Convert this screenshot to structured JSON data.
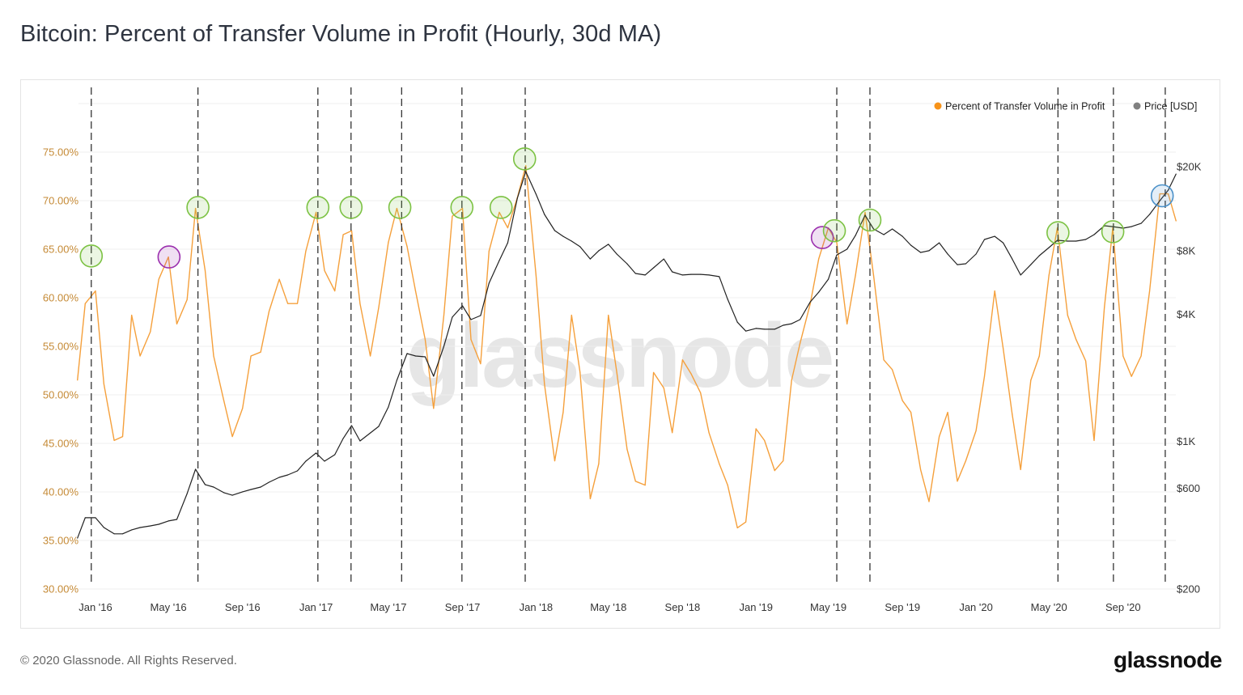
{
  "title": "Bitcoin: Percent of Transfer Volume in Profit (Hourly, 30d MA)",
  "footer": "© 2020 Glassnode. All Rights Reserved.",
  "logo": "glassnode",
  "watermark": "glassnode",
  "chart_data": {
    "type": "line",
    "title": "Bitcoin: Percent of Transfer Volume in Profit (Hourly, 30d MA)",
    "ylim": [
      30,
      80
    ],
    "y2lim": [
      200,
      40000
    ],
    "y2scale": "log",
    "grid": true,
    "legend_position": "top-right",
    "legend": [
      {
        "label": "Percent of Transfer Volume in Profit",
        "color": "#f7931a"
      },
      {
        "label": "Price [USD]",
        "color": "#808080"
      }
    ],
    "x_ticks": [
      {
        "date": "2016-01-01",
        "label": "Jan '16"
      },
      {
        "date": "2016-05-01",
        "label": "May '16"
      },
      {
        "date": "2016-09-01",
        "label": "Sep '16"
      },
      {
        "date": "2017-01-01",
        "label": "Jan '17"
      },
      {
        "date": "2017-05-01",
        "label": "May '17"
      },
      {
        "date": "2017-09-01",
        "label": "Sep '17"
      },
      {
        "date": "2018-01-01",
        "label": "Jan '18"
      },
      {
        "date": "2018-05-01",
        "label": "May '18"
      },
      {
        "date": "2018-09-01",
        "label": "Sep '18"
      },
      {
        "date": "2019-01-01",
        "label": "Jan '19"
      },
      {
        "date": "2019-05-01",
        "label": "May '19"
      },
      {
        "date": "2019-09-01",
        "label": "Sep '19"
      },
      {
        "date": "2020-01-01",
        "label": "Jan '20"
      },
      {
        "date": "2020-05-01",
        "label": "May '20"
      },
      {
        "date": "2020-09-01",
        "label": "Sep '20"
      }
    ],
    "y_ticks": [
      {
        "value": 30,
        "label": "30.00%"
      },
      {
        "value": 35,
        "label": "35.00%"
      },
      {
        "value": 40,
        "label": "40.00%"
      },
      {
        "value": 45,
        "label": "45.00%"
      },
      {
        "value": 50,
        "label": "50.00%"
      },
      {
        "value": 55,
        "label": "55.00%"
      },
      {
        "value": 60,
        "label": "60.00%"
      },
      {
        "value": 65,
        "label": "65.00%"
      },
      {
        "value": 70,
        "label": "70.00%"
      },
      {
        "value": 75,
        "label": "75.00%"
      }
    ],
    "y2_ticks": [
      {
        "value": 200,
        "label": "$200"
      },
      {
        "value": 600,
        "label": "$600"
      },
      {
        "value": 1000,
        "label": "$1K"
      },
      {
        "value": 4000,
        "label": "$4K"
      },
      {
        "value": 8000,
        "label": "$8K"
      },
      {
        "value": 20000,
        "label": "$20K"
      }
    ],
    "x": [
      "2015-12-02",
      "2015-12-15",
      "2016-01-01",
      "2016-01-15",
      "2016-02-01",
      "2016-02-15",
      "2016-03-01",
      "2016-03-15",
      "2016-04-01",
      "2016-04-15",
      "2016-05-01",
      "2016-05-15",
      "2016-06-01",
      "2016-06-15",
      "2016-07-01",
      "2016-07-15",
      "2016-08-01",
      "2016-08-15",
      "2016-09-01",
      "2016-09-15",
      "2016-10-01",
      "2016-10-15",
      "2016-11-01",
      "2016-11-15",
      "2016-12-01",
      "2016-12-15",
      "2017-01-01",
      "2017-01-15",
      "2017-02-01",
      "2017-02-15",
      "2017-03-01",
      "2017-03-15",
      "2017-04-01",
      "2017-04-15",
      "2017-05-01",
      "2017-05-15",
      "2017-06-01",
      "2017-06-15",
      "2017-07-01",
      "2017-07-15",
      "2017-08-01",
      "2017-08-15",
      "2017-09-01",
      "2017-09-15",
      "2017-10-01",
      "2017-10-15",
      "2017-11-01",
      "2017-11-15",
      "2017-12-01",
      "2017-12-15",
      "2018-01-01",
      "2018-01-15",
      "2018-02-01",
      "2018-02-15",
      "2018-03-01",
      "2018-03-15",
      "2018-04-01",
      "2018-04-15",
      "2018-05-01",
      "2018-05-15",
      "2018-06-01",
      "2018-06-15",
      "2018-07-01",
      "2018-07-15",
      "2018-08-01",
      "2018-08-15",
      "2018-09-01",
      "2018-09-15",
      "2018-10-01",
      "2018-10-15",
      "2018-11-01",
      "2018-11-15",
      "2018-12-01",
      "2018-12-15",
      "2019-01-01",
      "2019-01-15",
      "2019-02-01",
      "2019-02-15",
      "2019-03-01",
      "2019-03-15",
      "2019-04-01",
      "2019-04-15",
      "2019-05-01",
      "2019-05-15",
      "2019-06-01",
      "2019-06-15",
      "2019-07-01",
      "2019-07-15",
      "2019-08-01",
      "2019-08-15",
      "2019-09-01",
      "2019-09-15",
      "2019-10-01",
      "2019-10-15",
      "2019-11-01",
      "2019-11-15",
      "2019-12-01",
      "2019-12-15",
      "2020-01-01",
      "2020-01-15",
      "2020-02-01",
      "2020-02-15",
      "2020-03-01",
      "2020-03-15",
      "2020-04-01",
      "2020-04-15",
      "2020-05-01",
      "2020-05-15",
      "2020-06-01",
      "2020-06-15",
      "2020-07-01",
      "2020-07-15",
      "2020-08-01",
      "2020-08-15",
      "2020-09-01",
      "2020-09-15",
      "2020-10-01",
      "2020-10-15",
      "2020-11-01",
      "2020-11-15",
      "2020-11-28"
    ],
    "series": [
      {
        "name": "Percent of Transfer Volume in Profit",
        "axis": "left",
        "color": "#f5a03c",
        "values": [
          51.5,
          59.4,
          60.7,
          51.1,
          45.3,
          45.7,
          58.2,
          54.0,
          56.5,
          61.9,
          64.2,
          57.3,
          59.8,
          69.2,
          62.8,
          54.0,
          49.4,
          45.7,
          48.6,
          54.0,
          54.4,
          58.6,
          61.9,
          59.4,
          59.4,
          64.8,
          68.8,
          62.8,
          60.7,
          66.5,
          66.9,
          59.4,
          54.0,
          59.0,
          65.7,
          69.2,
          65.3,
          60.7,
          55.7,
          48.6,
          58.2,
          68.4,
          69.2,
          55.7,
          53.2,
          64.8,
          68.8,
          67.2,
          70.3,
          73.6,
          62.3,
          51.1,
          43.2,
          48.2,
          58.2,
          52.3,
          39.3,
          42.9,
          58.2,
          52.3,
          44.4,
          41.1,
          40.7,
          52.3,
          50.7,
          46.1,
          53.6,
          52.2,
          50.2,
          46.1,
          42.9,
          40.7,
          36.3,
          36.9,
          46.5,
          45.3,
          42.2,
          43.2,
          51.5,
          55.3,
          59.4,
          64.0,
          67.2,
          65.7,
          57.3,
          62.3,
          68.8,
          62.3,
          53.6,
          52.6,
          49.4,
          48.2,
          42.3,
          39.0,
          45.7,
          48.2,
          41.1,
          43.2,
          46.3,
          51.9,
          60.7,
          54.8,
          48.0,
          42.3,
          51.5,
          54.0,
          62.3,
          67.2,
          58.2,
          55.7,
          53.5,
          45.3,
          59.0,
          67.2,
          54.0,
          51.9,
          54.0,
          60.7,
          70.7,
          70.7,
          67.9
        ]
      },
      {
        "name": "Price [USD]",
        "axis": "right",
        "color": "#222222",
        "values": [
          348,
          435,
          435,
          391,
          365,
          365,
          381,
          391,
          398,
          405,
          420,
          427,
          566,
          738,
          624,
          608,
          572,
          556,
          577,
          592,
          608,
          641,
          676,
          694,
          725,
          806,
          881,
          806,
          865,
          1033,
          1188,
          1005,
          1097,
          1178,
          1455,
          1948,
          2606,
          2538,
          2516,
          2036,
          2820,
          3876,
          4386,
          3776,
          3945,
          5612,
          7186,
          8720,
          14180,
          18960,
          14820,
          11880,
          9960,
          9360,
          8880,
          8360,
          7310,
          8000,
          8580,
          7710,
          6940,
          6240,
          6140,
          6640,
          7310,
          6350,
          6140,
          6180,
          6180,
          6140,
          6030,
          4710,
          3670,
          3330,
          3430,
          3400,
          3400,
          3550,
          3610,
          3776,
          4580,
          5090,
          5860,
          7640,
          8130,
          9440,
          11780,
          10140,
          9530,
          10140,
          9360,
          8490,
          7850,
          8000,
          8720,
          7710,
          6870,
          6940,
          7710,
          9040,
          9360,
          8720,
          7310,
          6140,
          6870,
          7580,
          8280,
          8960,
          8880,
          8880,
          9040,
          9530,
          10500,
          10400,
          10230,
          10400,
          10780,
          11880,
          13800,
          15480,
          18480
        ]
      }
    ],
    "vertical_markers": [
      "2015-12-25",
      "2016-06-19",
      "2017-01-04",
      "2017-02-28",
      "2017-05-23",
      "2017-08-31",
      "2017-12-14",
      "2019-05-15",
      "2019-07-09",
      "2020-05-16",
      "2020-08-16",
      "2020-11-10"
    ],
    "highlight_circles": [
      {
        "date": "2015-12-25",
        "value": 64.3,
        "color": "#7cc243"
      },
      {
        "date": "2016-05-02",
        "value": 64.2,
        "color": "#9b2fae"
      },
      {
        "date": "2016-06-19",
        "value": 69.3,
        "color": "#7cc243"
      },
      {
        "date": "2017-01-04",
        "value": 69.3,
        "color": "#7cc243"
      },
      {
        "date": "2017-02-28",
        "value": 69.3,
        "color": "#7cc243"
      },
      {
        "date": "2017-05-20",
        "value": 69.3,
        "color": "#7cc243"
      },
      {
        "date": "2017-08-31",
        "value": 69.3,
        "color": "#7cc243"
      },
      {
        "date": "2017-11-04",
        "value": 69.3,
        "color": "#7cc243"
      },
      {
        "date": "2017-12-13",
        "value": 74.3,
        "color": "#7cc243"
      },
      {
        "date": "2019-04-21",
        "value": 66.2,
        "color": "#9b2fae"
      },
      {
        "date": "2019-05-11",
        "value": 66.9,
        "color": "#7cc243"
      },
      {
        "date": "2019-07-09",
        "value": 68.0,
        "color": "#7cc243"
      },
      {
        "date": "2020-05-16",
        "value": 66.7,
        "color": "#7cc243"
      },
      {
        "date": "2020-08-15",
        "value": 66.8,
        "color": "#7cc243"
      },
      {
        "date": "2020-11-05",
        "value": 70.5,
        "color": "#4a90c8"
      }
    ]
  }
}
